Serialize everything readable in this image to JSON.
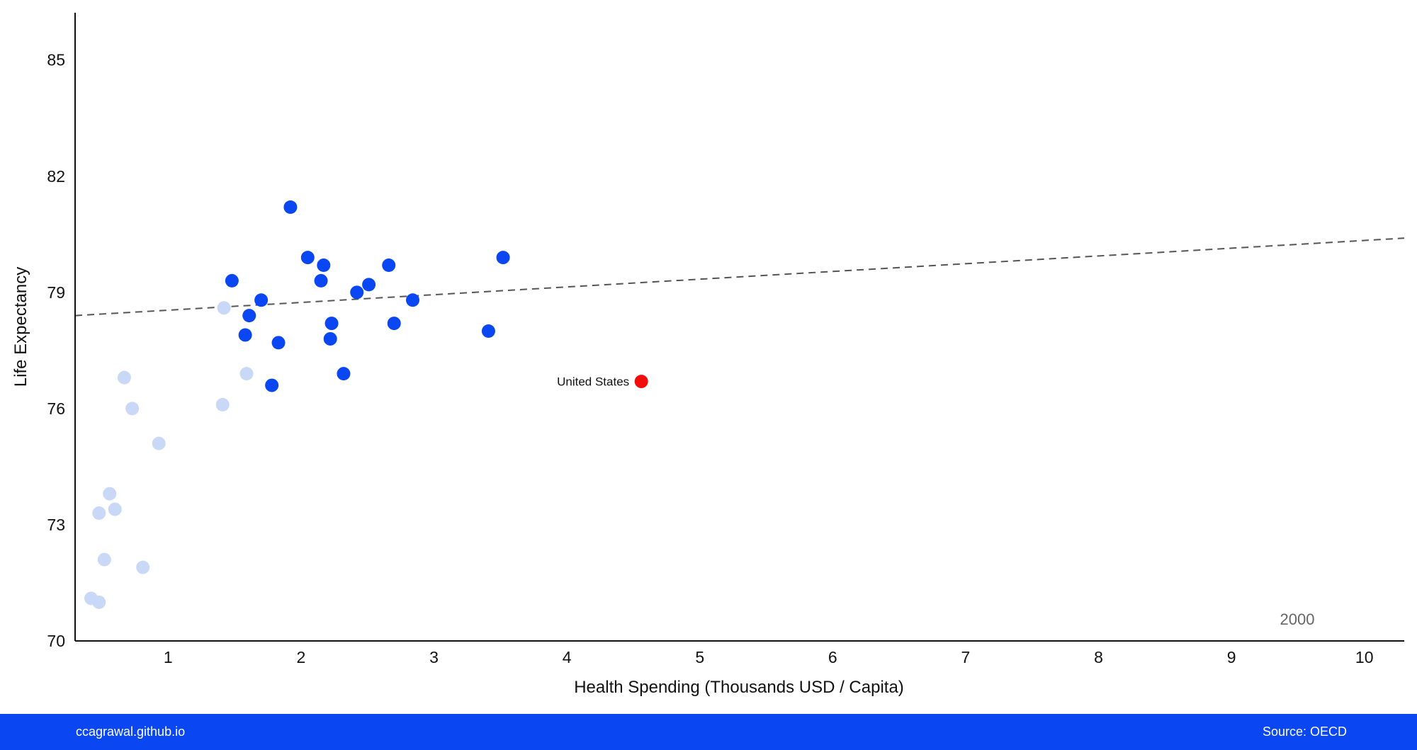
{
  "chart_data": {
    "type": "scatter",
    "xlabel": "Health Spending (Thousands USD / Capita)",
    "ylabel": "Life Expectancy",
    "xlim": [
      0.3,
      10.3
    ],
    "ylim": [
      70,
      86
    ],
    "x_ticks": [
      1,
      2,
      3,
      4,
      5,
      6,
      7,
      8,
      9,
      10
    ],
    "y_ticks": [
      70,
      73,
      76,
      79,
      82,
      85
    ],
    "x_tick_labels": [
      "1",
      "2",
      "3",
      "4",
      "5",
      "6",
      "7",
      "8",
      "9",
      "10"
    ],
    "y_tick_labels": [
      "70",
      "73",
      "76",
      "79",
      "82",
      "85"
    ],
    "year_label": "2000",
    "trend_line": {
      "style": "dashed",
      "from": [
        0.3,
        78.4
      ],
      "to": [
        10.3,
        80.4
      ]
    },
    "highlight": {
      "name": "United States",
      "x": 4.56,
      "y": 76.7
    },
    "series": [
      {
        "style": "dark",
        "points": [
          {
            "x": 1.92,
            "y": 81.2
          },
          {
            "x": 2.05,
            "y": 79.9
          },
          {
            "x": 2.17,
            "y": 79.7
          },
          {
            "x": 2.15,
            "y": 79.3
          },
          {
            "x": 2.66,
            "y": 79.7
          },
          {
            "x": 3.52,
            "y": 79.9
          },
          {
            "x": 1.48,
            "y": 79.3
          },
          {
            "x": 2.42,
            "y": 79.0
          },
          {
            "x": 2.51,
            "y": 79.2
          },
          {
            "x": 1.7,
            "y": 78.8
          },
          {
            "x": 2.84,
            "y": 78.8
          },
          {
            "x": 1.61,
            "y": 78.4
          },
          {
            "x": 2.23,
            "y": 78.2
          },
          {
            "x": 2.7,
            "y": 78.2
          },
          {
            "x": 1.58,
            "y": 77.9
          },
          {
            "x": 2.22,
            "y": 77.8
          },
          {
            "x": 1.83,
            "y": 77.7
          },
          {
            "x": 3.41,
            "y": 78.0
          },
          {
            "x": 2.32,
            "y": 76.9
          },
          {
            "x": 1.78,
            "y": 76.6
          }
        ]
      },
      {
        "style": "faded",
        "points": [
          {
            "x": 1.42,
            "y": 78.6
          },
          {
            "x": 1.59,
            "y": 76.9
          },
          {
            "x": 0.67,
            "y": 76.8
          },
          {
            "x": 0.73,
            "y": 76.0
          },
          {
            "x": 1.41,
            "y": 76.1
          },
          {
            "x": 0.93,
            "y": 75.1
          },
          {
            "x": 0.56,
            "y": 73.8
          },
          {
            "x": 0.6,
            "y": 73.4
          },
          {
            "x": 0.48,
            "y": 73.3
          },
          {
            "x": 0.52,
            "y": 72.1
          },
          {
            "x": 0.81,
            "y": 71.9
          },
          {
            "x": 0.42,
            "y": 71.1
          },
          {
            "x": 0.48,
            "y": 71.0
          }
        ]
      }
    ]
  },
  "colors": {
    "dark_point": "#0a46f2",
    "faded_point": "#cad8f8",
    "highlight_point": "#f20c0c",
    "trend_line": "#555555",
    "axis": "#111111",
    "footer_bg": "#0a46f2"
  },
  "footer": {
    "left_text": "ccagrawal.github.io",
    "right_text": "Source: OECD"
  }
}
